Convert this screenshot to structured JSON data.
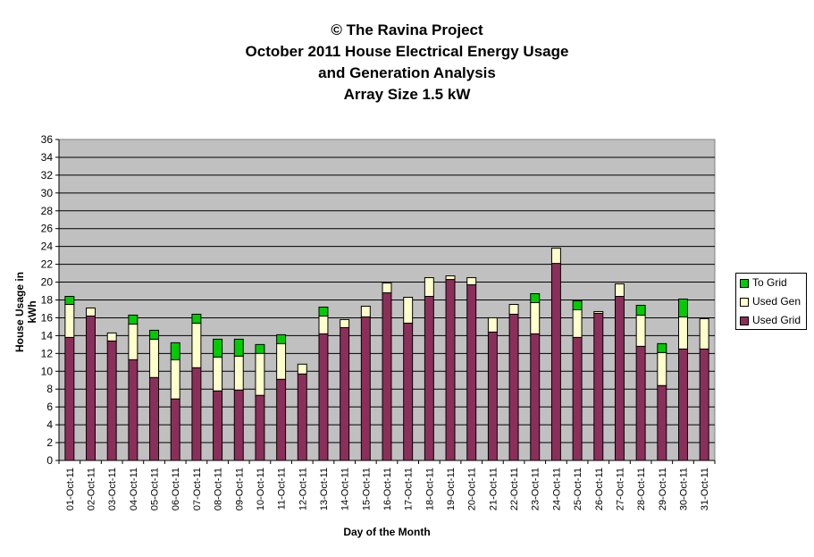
{
  "chart_data": {
    "type": "bar",
    "stacked": true,
    "title_lines": [
      "© The Ravina Project",
      "October 2011 House Electrical Energy Usage",
      "and Generation Analysis",
      "Array Size 1.5 kW"
    ],
    "xlabel": "Day of the Month",
    "ylabel": "House Usage in kWh",
    "ylim": [
      0,
      36
    ],
    "ytick_step": 2,
    "grid": true,
    "legend_position": "right",
    "categories": [
      "01-Oct-11",
      "02-Oct-11",
      "03-Oct-11",
      "04-Oct-11",
      "05-Oct-11",
      "06-Oct-11",
      "07-Oct-11",
      "08-Oct-11",
      "09-Oct-11",
      "10-Oct-11",
      "11-Oct-11",
      "12-Oct-11",
      "13-Oct-11",
      "14-Oct-11",
      "15-Oct-11",
      "16-Oct-11",
      "17-Oct-11",
      "18-Oct-11",
      "19-Oct-11",
      "20-Oct-11",
      "21-Oct-11",
      "22-Oct-11",
      "23-Oct-11",
      "24-Oct-11",
      "25-Oct-11",
      "26-Oct-11",
      "27-Oct-11",
      "28-Oct-11",
      "29-Oct-11",
      "30-Oct-11",
      "31-Oct-11"
    ],
    "series": [
      {
        "name": "Used Grid",
        "color": "#8b2f5a",
        "values": [
          13.8,
          16.2,
          13.4,
          11.3,
          9.3,
          6.9,
          10.4,
          7.8,
          7.9,
          7.3,
          9.1,
          9.7,
          14.2,
          14.9,
          16.1,
          18.8,
          15.4,
          18.4,
          20.3,
          19.7,
          14.4,
          16.4,
          14.2,
          22.1,
          13.8,
          16.5,
          18.4,
          12.8,
          8.4,
          12.5,
          12.5
        ]
      },
      {
        "name": "Used Gen",
        "color": "#ffffcc",
        "values": [
          3.7,
          0.9,
          0.9,
          4.0,
          4.3,
          4.4,
          5.0,
          3.8,
          3.8,
          4.7,
          4.0,
          1.1,
          2.0,
          0.9,
          1.2,
          1.1,
          2.9,
          2.1,
          0.4,
          0.8,
          1.6,
          1.1,
          3.5,
          1.7,
          3.1,
          0.2,
          1.4,
          3.5,
          3.7,
          3.6,
          3.4
        ]
      },
      {
        "name": "To Grid",
        "color": "#00cc00",
        "values": [
          0.9,
          0,
          0,
          1.0,
          1.0,
          1.9,
          1.0,
          2.0,
          1.9,
          1.0,
          1.0,
          0,
          1.0,
          0,
          0,
          0,
          0,
          0,
          0,
          0,
          0,
          0,
          1.0,
          0,
          1.0,
          0,
          0,
          1.1,
          1.0,
          2.0,
          0
        ]
      }
    ]
  },
  "legend_order": [
    "To Grid",
    "Used Gen",
    "Used Grid"
  ]
}
